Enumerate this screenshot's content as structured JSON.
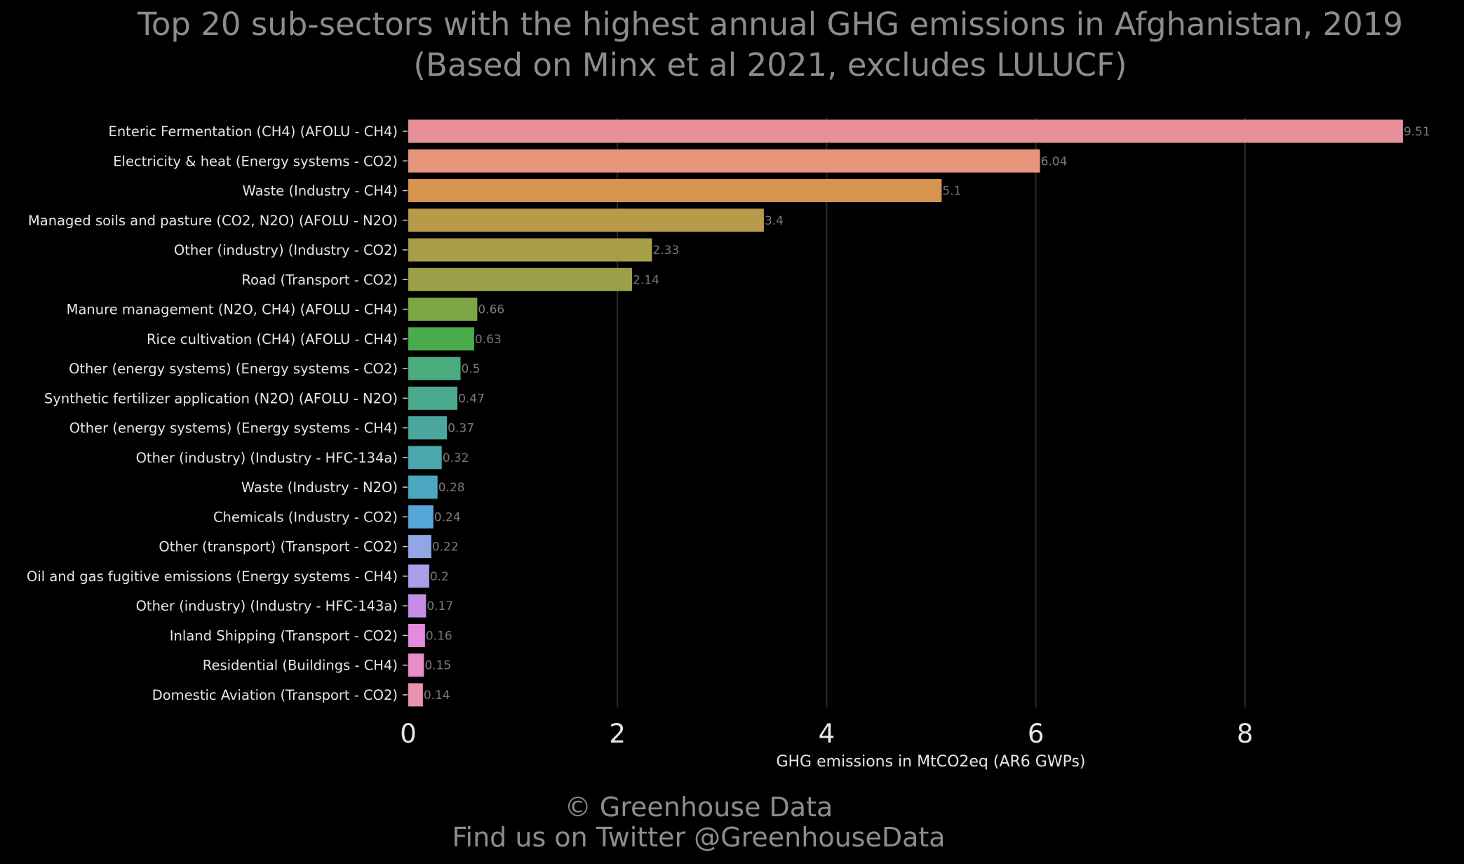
{
  "chart_data": {
    "type": "bar",
    "orientation": "horizontal",
    "title": [
      "Top 20 sub-sectors with the highest annual GHG emissions in Afghanistan, 2019",
      "(Based on Minx et al 2021, excludes LULUCF)"
    ],
    "xlabel": "GHG emissions in MtCO2eq (AR6 GWPs)",
    "ylabel": "",
    "xlim": [
      0,
      10
    ],
    "xticks": [
      0,
      2,
      4,
      6,
      8
    ],
    "grid": true,
    "legend": "none",
    "categories": [
      "Enteric Fermentation (CH4) (AFOLU - CH4)",
      "Electricity & heat (Energy systems - CO2)",
      "Waste (Industry - CH4)",
      "Managed soils and pasture (CO2, N2O) (AFOLU - N2O)",
      "Other (industry) (Industry - CO2)",
      "Road (Transport - CO2)",
      "Manure management (N2O, CH4) (AFOLU - CH4)",
      "Rice cultivation (CH4) (AFOLU - CH4)",
      "Other (energy systems) (Energy systems - CO2)",
      "Synthetic fertilizer application (N2O) (AFOLU - N2O)",
      "Other (energy systems) (Energy systems - CH4)",
      "Other (industry) (Industry - HFC-134a)",
      "Waste (Industry - N2O)",
      "Chemicals (Industry - CO2)",
      "Other (transport) (Transport - CO2)",
      "Oil and gas fugitive emissions (Energy systems - CH4)",
      "Other (industry) (Industry - HFC-143a)",
      "Inland Shipping (Transport - CO2)",
      "Residential (Buildings - CH4)",
      "Domestic Aviation (Transport - CO2)"
    ],
    "values": [
      9.51,
      6.04,
      5.1,
      3.4,
      2.33,
      2.14,
      0.66,
      0.63,
      0.5,
      0.47,
      0.37,
      0.32,
      0.28,
      0.24,
      0.22,
      0.2,
      0.17,
      0.16,
      0.15,
      0.14
    ],
    "value_labels": [
      "9.51",
      "6.04",
      "5.1",
      "3.4",
      "2.33",
      "2.14",
      "0.66",
      "0.63",
      "0.5",
      "0.47",
      "0.37",
      "0.32",
      "0.28",
      "0.24",
      "0.22",
      "0.2",
      "0.17",
      "0.16",
      "0.15",
      "0.14"
    ],
    "colors": [
      "#e8909a",
      "#e8957d",
      "#d6954f",
      "#b99a4b",
      "#a89d49",
      "#9aa047",
      "#7aa643",
      "#4aab4c",
      "#4aac7e",
      "#4aa98e",
      "#49a79d",
      "#4aa7ad",
      "#4ba7c0",
      "#55a6db",
      "#92a6e6",
      "#ad9eea",
      "#c68ee8",
      "#e28be0",
      "#ea8ec9",
      "#e891b2"
    ]
  },
  "footer": {
    "line1": "© Greenhouse Data",
    "line2": "Find us on Twitter @GreenhouseData"
  }
}
